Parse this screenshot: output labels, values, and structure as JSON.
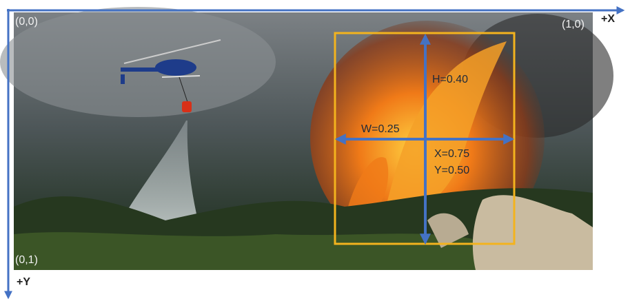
{
  "axes": {
    "origin": "(0,0)",
    "x_end": "(1,0)",
    "x_label": "+X",
    "y_end": "(0,1)",
    "y_label": "+Y"
  },
  "box": {
    "height": "H=0.40",
    "width": "W=0.25",
    "x": "X=0.75",
    "y": "Y=0.50"
  }
}
